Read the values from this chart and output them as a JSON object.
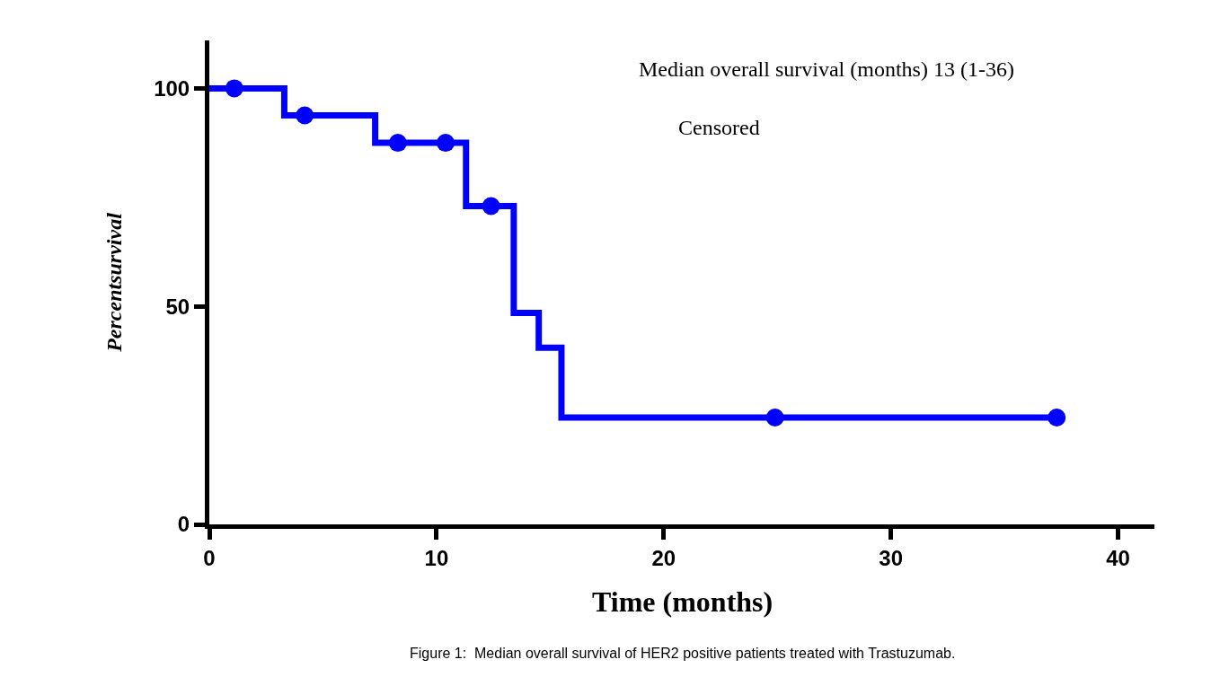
{
  "chart_data": {
    "type": "step",
    "xlabel": "Time (months)",
    "ylabel": "Percentsurvival",
    "xlim": [
      0,
      41.6
    ],
    "xticks": [
      0,
      10,
      20,
      30,
      40
    ],
    "ylim": [
      0,
      111
    ],
    "yticks": [
      0,
      50,
      100
    ],
    "line_style": "solid",
    "series": [
      {
        "color": "#0000ff",
        "x": [
          0,
          3.3,
          7.3,
          11.3,
          13.4,
          14.5,
          15.5,
          37.3
        ],
        "values": [
          100,
          93.8,
          87.5,
          73,
          48.5,
          40.5,
          24.5,
          24.5
        ]
      },
      {
        "type": "scatter",
        "marker": "circle",
        "color": "#0000ff",
        "x": [
          1.1,
          4.2,
          8.3,
          10.4,
          12.4,
          24.9,
          37.3
        ],
        "values": [
          100,
          93.8,
          87.5,
          87.5,
          73,
          24.5,
          24.5
        ]
      }
    ],
    "annotations": [
      "Median overall survival (months) 13 (1-36)",
      "Censored",
      "Figure 1:  Median overall survival of HER2 positive patients treated with Trastuzumab."
    ]
  }
}
